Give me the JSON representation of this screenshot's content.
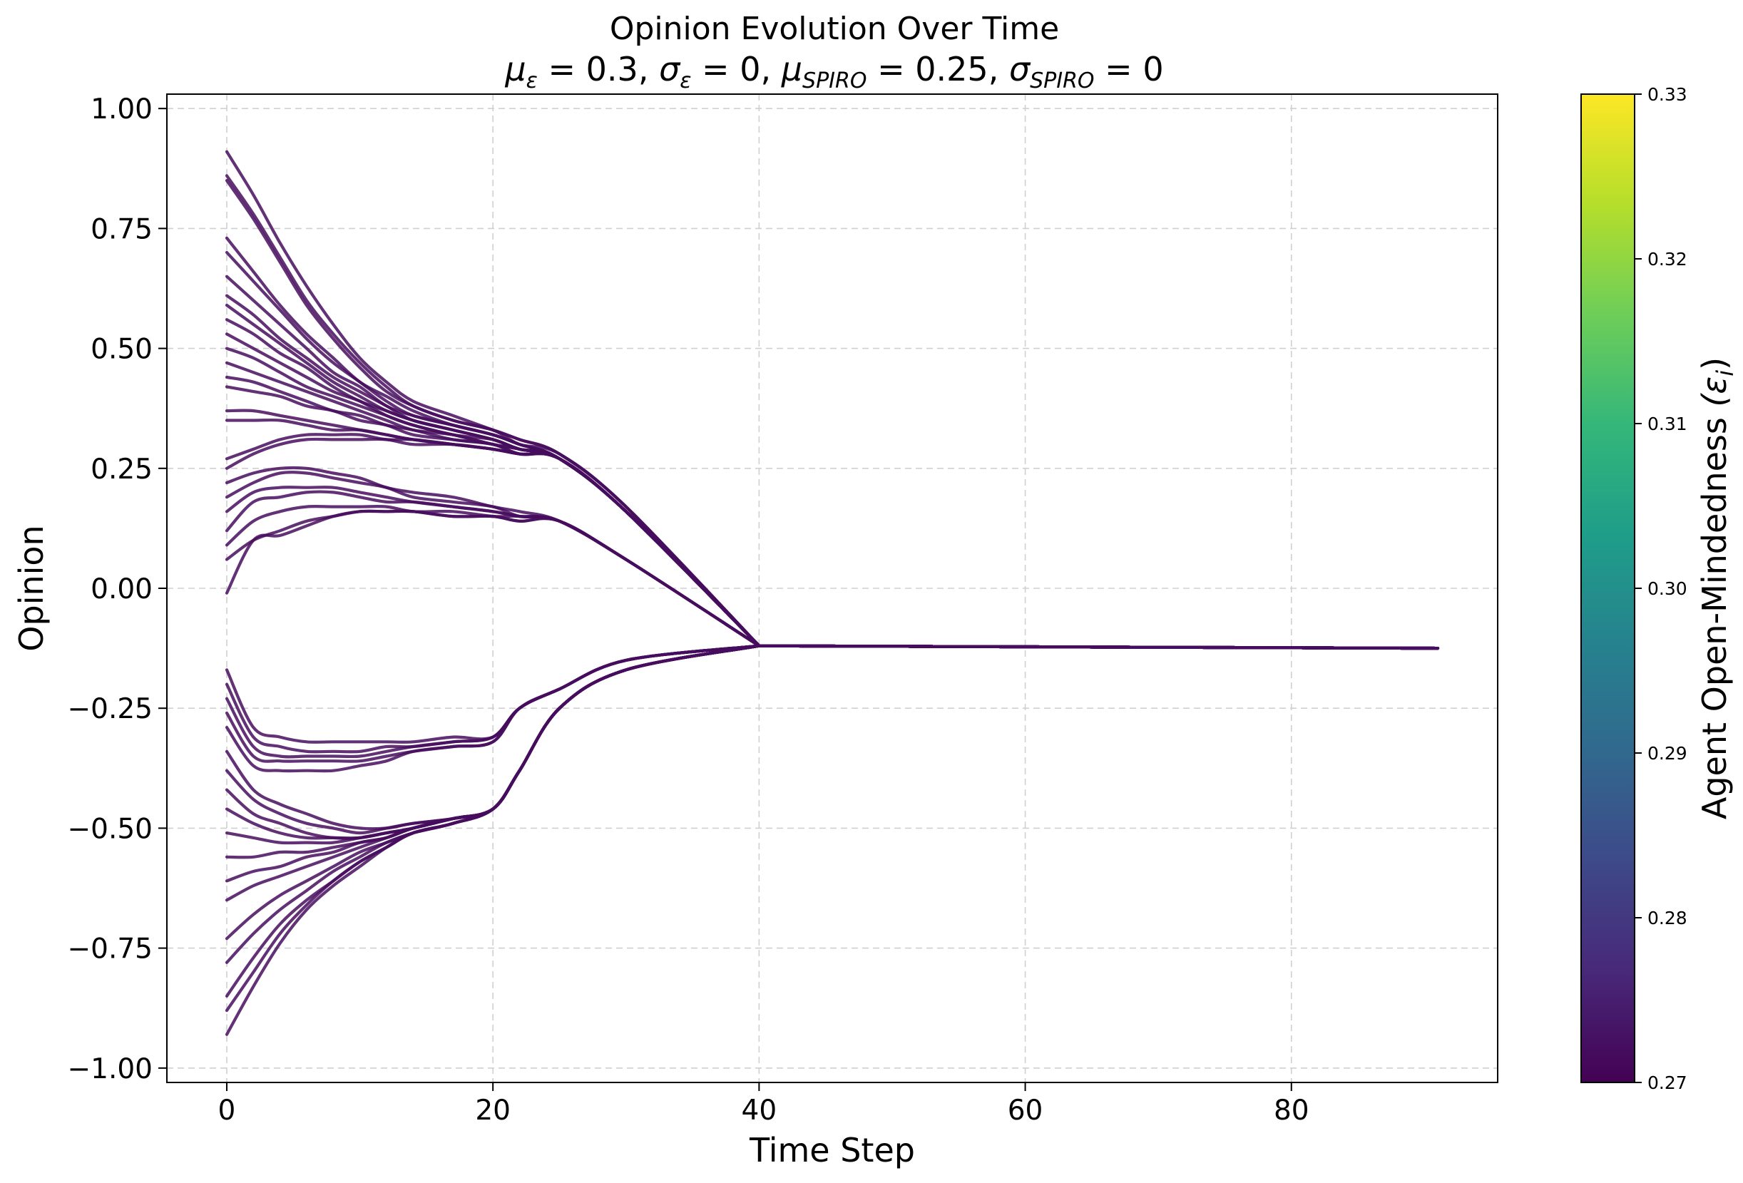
{
  "chart_data": {
    "type": "line",
    "title": "Opinion Evolution Over Time",
    "subtitle": "μ_ε = 0.3, σ_ε = 0, μ_SPIRO = 0.25, σ_SPIRO = 0",
    "subtitle_parts": {
      "mu_eps": "μ",
      "eps_sub": "ε",
      "part1": " = 0.3, ",
      "sigma_eps": "σ",
      "part2": " = 0, ",
      "mu_spiro": "μ",
      "spiro_sub": "SPIRO",
      "part3": " = 0.25, ",
      "sigma_spiro": "σ",
      "part4": " = 0"
    },
    "xlabel": "Time Step",
    "ylabel": "Opinion",
    "xlim": [
      -4.5,
      95.5
    ],
    "ylim": [
      -1.03,
      1.03
    ],
    "xticks": [
      0,
      20,
      40,
      60,
      80
    ],
    "xtick_labels": [
      "0",
      "20",
      "40",
      "60",
      "80"
    ],
    "yticks": [
      1.0,
      0.75,
      0.5,
      0.25,
      0.0,
      -0.25,
      -0.5,
      -0.75,
      -1.0
    ],
    "ytick_labels": [
      "1.00",
      "0.75",
      "0.50",
      "0.25",
      "0.00",
      "−0.25",
      "−0.50",
      "−0.75",
      "−1.00"
    ],
    "grid": true,
    "final_consensus": -0.125,
    "last_time_step": 91,
    "line_color": "#470d5e",
    "colorbar": {
      "label": "Agent Open-Mindedness",
      "label_symbol": "(ε",
      "label_sub": "i",
      "label_close": ")",
      "min": 0.27,
      "max": 0.33,
      "ticks": [
        0.27,
        0.28,
        0.29,
        0.3,
        0.31,
        0.32,
        0.33
      ],
      "tick_labels": [
        "0.27",
        "0.28",
        "0.29",
        "0.30",
        "0.31",
        "0.32",
        "0.33"
      ],
      "colormap": "viridis",
      "colors": [
        "#440154",
        "#482878",
        "#3e4989",
        "#31688e",
        "#26828e",
        "#1f9e89",
        "#35b779",
        "#6ece58",
        "#b5de2b",
        "#fde725"
      ]
    },
    "series": [
      {
        "values": [
          0.91,
          0.82,
          0.72,
          0.63,
          0.55,
          0.48,
          0.43,
          0.39,
          0.36,
          0.33,
          0.31,
          0.28,
          0.17,
          -0.12
        ]
      },
      {
        "values": [
          0.86,
          0.78,
          0.69,
          0.6,
          0.53,
          0.47,
          0.42,
          0.38,
          0.35,
          0.33,
          0.31,
          0.28,
          0.17,
          -0.12
        ]
      },
      {
        "values": [
          0.85,
          0.77,
          0.68,
          0.59,
          0.52,
          0.46,
          0.41,
          0.38,
          0.35,
          0.33,
          0.3,
          0.28,
          0.17,
          -0.12
        ]
      },
      {
        "values": [
          0.73,
          0.66,
          0.59,
          0.53,
          0.48,
          0.43,
          0.4,
          0.37,
          0.34,
          0.32,
          0.3,
          0.27,
          0.16,
          -0.12
        ]
      },
      {
        "values": [
          0.7,
          0.64,
          0.58,
          0.52,
          0.47,
          0.43,
          0.39,
          0.36,
          0.34,
          0.32,
          0.3,
          0.27,
          0.16,
          -0.12
        ]
      },
      {
        "values": [
          0.65,
          0.6,
          0.55,
          0.5,
          0.45,
          0.42,
          0.38,
          0.36,
          0.34,
          0.32,
          0.3,
          0.27,
          0.16,
          -0.12
        ]
      },
      {
        "values": [
          0.61,
          0.57,
          0.52,
          0.48,
          0.44,
          0.41,
          0.38,
          0.35,
          0.33,
          0.31,
          0.29,
          0.27,
          0.16,
          -0.12
        ]
      },
      {
        "values": [
          0.59,
          0.55,
          0.51,
          0.47,
          0.43,
          0.4,
          0.37,
          0.35,
          0.33,
          0.31,
          0.29,
          0.27,
          0.16,
          -0.12
        ]
      },
      {
        "values": [
          0.56,
          0.53,
          0.49,
          0.46,
          0.42,
          0.39,
          0.37,
          0.35,
          0.33,
          0.31,
          0.29,
          0.27,
          0.16,
          -0.12
        ]
      },
      {
        "values": [
          0.53,
          0.5,
          0.47,
          0.44,
          0.41,
          0.39,
          0.36,
          0.34,
          0.32,
          0.31,
          0.29,
          0.27,
          0.16,
          -0.12
        ]
      },
      {
        "values": [
          0.5,
          0.48,
          0.45,
          0.42,
          0.4,
          0.38,
          0.36,
          0.34,
          0.32,
          0.3,
          0.29,
          0.27,
          0.16,
          -0.12
        ]
      },
      {
        "values": [
          0.47,
          0.45,
          0.43,
          0.41,
          0.39,
          0.37,
          0.35,
          0.33,
          0.32,
          0.3,
          0.29,
          0.27,
          0.16,
          -0.12
        ]
      },
      {
        "values": [
          0.44,
          0.43,
          0.41,
          0.39,
          0.37,
          0.36,
          0.34,
          0.33,
          0.31,
          0.3,
          0.28,
          0.27,
          0.16,
          -0.12
        ]
      },
      {
        "values": [
          0.42,
          0.41,
          0.4,
          0.38,
          0.37,
          0.35,
          0.34,
          0.32,
          0.31,
          0.3,
          0.28,
          0.27,
          0.16,
          -0.12
        ]
      },
      {
        "values": [
          0.37,
          0.37,
          0.36,
          0.35,
          0.34,
          0.33,
          0.32,
          0.31,
          0.3,
          0.29,
          0.28,
          0.27,
          0.16,
          -0.12
        ]
      },
      {
        "values": [
          0.35,
          0.35,
          0.35,
          0.34,
          0.33,
          0.33,
          0.32,
          0.31,
          0.3,
          0.29,
          0.28,
          0.27,
          0.16,
          -0.12
        ]
      },
      {
        "values": [
          0.27,
          0.29,
          0.31,
          0.32,
          0.32,
          0.32,
          0.31,
          0.31,
          0.3,
          0.29,
          0.28,
          0.27,
          0.16,
          -0.12
        ]
      },
      {
        "values": [
          0.25,
          0.28,
          0.3,
          0.31,
          0.31,
          0.31,
          0.31,
          0.3,
          0.3,
          0.29,
          0.28,
          0.27,
          0.16,
          -0.12
        ]
      },
      {
        "values": [
          0.22,
          0.24,
          0.25,
          0.25,
          0.24,
          0.23,
          0.21,
          0.2,
          0.19,
          0.17,
          0.16,
          0.14,
          0.06,
          -0.12
        ]
      },
      {
        "values": [
          0.19,
          0.22,
          0.24,
          0.24,
          0.23,
          0.22,
          0.21,
          0.19,
          0.18,
          0.17,
          0.15,
          0.14,
          0.06,
          -0.12
        ]
      },
      {
        "values": [
          0.16,
          0.2,
          0.21,
          0.21,
          0.21,
          0.2,
          0.19,
          0.18,
          0.17,
          0.16,
          0.15,
          0.14,
          0.06,
          -0.12
        ]
      },
      {
        "values": [
          0.12,
          0.18,
          0.19,
          0.2,
          0.2,
          0.19,
          0.18,
          0.18,
          0.17,
          0.16,
          0.15,
          0.14,
          0.06,
          -0.12
        ]
      },
      {
        "values": [
          0.09,
          0.14,
          0.16,
          0.17,
          0.17,
          0.17,
          0.17,
          0.16,
          0.16,
          0.15,
          0.15,
          0.14,
          0.06,
          -0.12
        ]
      },
      {
        "values": [
          0.06,
          0.1,
          0.12,
          0.14,
          0.15,
          0.16,
          0.16,
          0.16,
          0.15,
          0.15,
          0.14,
          0.14,
          0.06,
          -0.12
        ]
      },
      {
        "values": [
          -0.01,
          0.1,
          0.11,
          0.13,
          0.15,
          0.16,
          0.16,
          0.16,
          0.15,
          0.15,
          0.14,
          0.14,
          0.06,
          -0.12
        ]
      },
      {
        "values": [
          -0.17,
          -0.29,
          -0.31,
          -0.32,
          -0.32,
          -0.32,
          -0.32,
          -0.32,
          -0.31,
          -0.31,
          -0.25,
          -0.21,
          -0.15,
          -0.12
        ]
      },
      {
        "values": [
          -0.2,
          -0.31,
          -0.33,
          -0.34,
          -0.34,
          -0.34,
          -0.33,
          -0.33,
          -0.32,
          -0.31,
          -0.25,
          -0.21,
          -0.15,
          -0.12
        ]
      },
      {
        "values": [
          -0.23,
          -0.33,
          -0.35,
          -0.35,
          -0.35,
          -0.35,
          -0.34,
          -0.33,
          -0.32,
          -0.31,
          -0.25,
          -0.21,
          -0.15,
          -0.12
        ]
      },
      {
        "values": [
          -0.26,
          -0.35,
          -0.36,
          -0.36,
          -0.36,
          -0.36,
          -0.35,
          -0.34,
          -0.33,
          -0.32,
          -0.25,
          -0.21,
          -0.15,
          -0.12
        ]
      },
      {
        "values": [
          -0.29,
          -0.37,
          -0.38,
          -0.38,
          -0.38,
          -0.37,
          -0.36,
          -0.34,
          -0.33,
          -0.32,
          -0.25,
          -0.21,
          -0.15,
          -0.12
        ]
      },
      {
        "values": [
          -0.34,
          -0.42,
          -0.45,
          -0.47,
          -0.49,
          -0.5,
          -0.5,
          -0.49,
          -0.48,
          -0.46,
          -0.38,
          -0.25,
          -0.17,
          -0.12
        ]
      },
      {
        "values": [
          -0.38,
          -0.44,
          -0.47,
          -0.49,
          -0.5,
          -0.51,
          -0.5,
          -0.49,
          -0.48,
          -0.46,
          -0.38,
          -0.25,
          -0.17,
          -0.12
        ]
      },
      {
        "values": [
          -0.42,
          -0.47,
          -0.49,
          -0.51,
          -0.52,
          -0.52,
          -0.51,
          -0.5,
          -0.48,
          -0.46,
          -0.38,
          -0.25,
          -0.17,
          -0.12
        ]
      },
      {
        "values": [
          -0.46,
          -0.49,
          -0.51,
          -0.52,
          -0.52,
          -0.52,
          -0.51,
          -0.5,
          -0.48,
          -0.46,
          -0.38,
          -0.25,
          -0.17,
          -0.12
        ]
      },
      {
        "values": [
          -0.51,
          -0.52,
          -0.53,
          -0.53,
          -0.53,
          -0.52,
          -0.51,
          -0.5,
          -0.48,
          -0.46,
          -0.38,
          -0.25,
          -0.17,
          -0.12
        ]
      },
      {
        "values": [
          -0.56,
          -0.56,
          -0.55,
          -0.55,
          -0.54,
          -0.53,
          -0.52,
          -0.5,
          -0.48,
          -0.46,
          -0.38,
          -0.25,
          -0.17,
          -0.12
        ]
      },
      {
        "values": [
          -0.61,
          -0.59,
          -0.58,
          -0.56,
          -0.55,
          -0.53,
          -0.52,
          -0.5,
          -0.48,
          -0.46,
          -0.38,
          -0.25,
          -0.17,
          -0.12
        ]
      },
      {
        "values": [
          -0.65,
          -0.62,
          -0.6,
          -0.58,
          -0.56,
          -0.54,
          -0.52,
          -0.5,
          -0.48,
          -0.46,
          -0.38,
          -0.25,
          -0.17,
          -0.12
        ]
      },
      {
        "values": [
          -0.73,
          -0.68,
          -0.64,
          -0.61,
          -0.58,
          -0.55,
          -0.53,
          -0.51,
          -0.49,
          -0.46,
          -0.38,
          -0.25,
          -0.17,
          -0.12
        ]
      },
      {
        "values": [
          -0.78,
          -0.72,
          -0.67,
          -0.63,
          -0.59,
          -0.56,
          -0.53,
          -0.51,
          -0.49,
          -0.46,
          -0.38,
          -0.25,
          -0.17,
          -0.12
        ]
      },
      {
        "values": [
          -0.85,
          -0.77,
          -0.7,
          -0.65,
          -0.61,
          -0.57,
          -0.54,
          -0.51,
          -0.49,
          -0.46,
          -0.38,
          -0.25,
          -0.17,
          -0.12
        ]
      },
      {
        "values": [
          -0.88,
          -0.8,
          -0.72,
          -0.66,
          -0.61,
          -0.57,
          -0.54,
          -0.51,
          -0.49,
          -0.46,
          -0.38,
          -0.25,
          -0.17,
          -0.12
        ]
      },
      {
        "values": [
          -0.93,
          -0.83,
          -0.74,
          -0.67,
          -0.62,
          -0.58,
          -0.54,
          -0.51,
          -0.49,
          -0.46,
          -0.38,
          -0.25,
          -0.17,
          -0.12
        ]
      }
    ],
    "time_steps": [
      0,
      2,
      4,
      6,
      8,
      10,
      12,
      14,
      17,
      20,
      22,
      25,
      30,
      40
    ]
  }
}
